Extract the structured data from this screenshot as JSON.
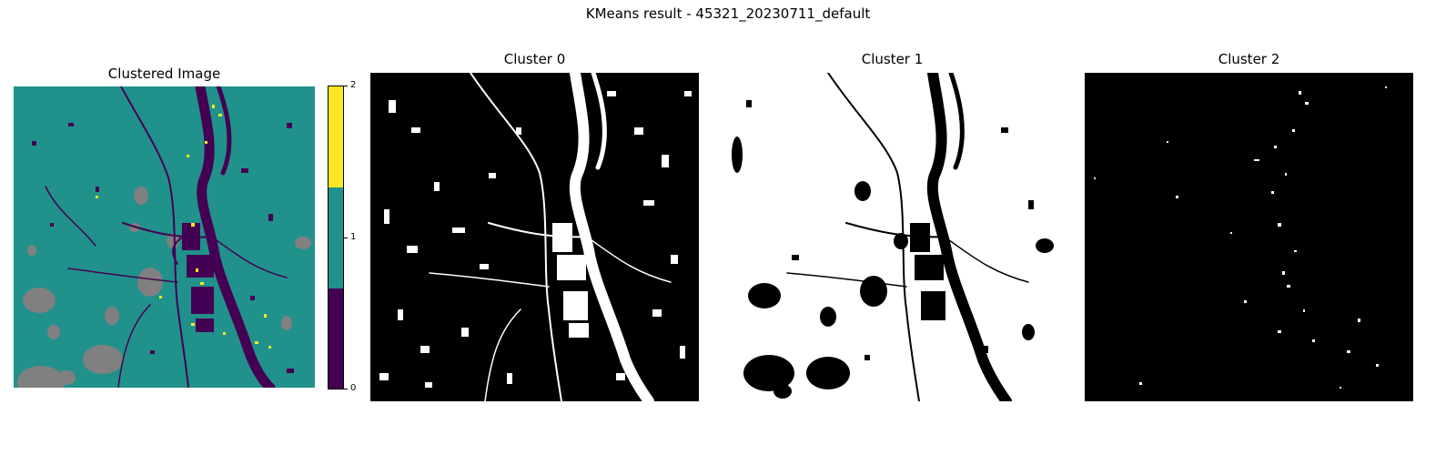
{
  "figure": {
    "suptitle": "KMeans result - 45321_20230711_default"
  },
  "panels": {
    "clustered": {
      "title": "Clustered Image"
    },
    "cluster0": {
      "title": "Cluster 0"
    },
    "cluster1": {
      "title": "Cluster 1"
    },
    "cluster2": {
      "title": "Cluster 2"
    }
  },
  "colorbar": {
    "ticks": [
      "0",
      "1",
      "2"
    ],
    "colors": {
      "c0": "#440154",
      "c1": "#21918c",
      "c2": "#fde725",
      "nodata": "#808080"
    }
  }
}
